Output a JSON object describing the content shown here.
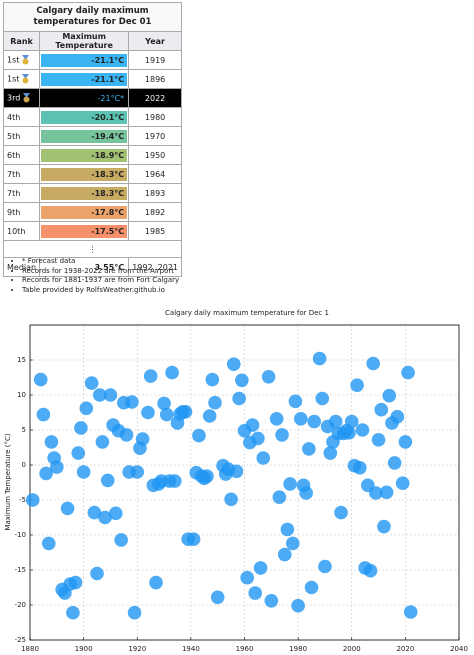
{
  "table": {
    "title": "Calgary daily maximum temperatures for Dec 01",
    "headers": [
      "Rank",
      "Maximum Temperature",
      "Year"
    ],
    "rows": [
      [
        "1st",
        "-21.1°C",
        "1919"
      ],
      [
        "1st",
        "-21.1°C",
        "1896"
      ],
      [
        "3rd",
        "-21°C*",
        "2022"
      ],
      [
        "4th",
        "-20.1°C",
        "1980"
      ],
      [
        "5th",
        "-19.4°C",
        "1970"
      ],
      [
        "6th",
        "-18.9°C",
        "1950"
      ],
      [
        "7th",
        "-18.3°C",
        "1964"
      ],
      [
        "7th",
        "-18.3°C",
        "1893"
      ],
      [
        "9th",
        "-17.8°C",
        "1892"
      ],
      [
        "10th",
        "-17.5°C",
        "1985"
      ],
      [
        "⋮"
      ],
      [
        "Median",
        "3.55°C",
        "1992..2021"
      ]
    ],
    "cell_colors": [
      "#3ab4f2",
      "#3ab4f2",
      "#000000",
      "#5cc3b2",
      "#77c39c",
      "#a2c172",
      "#c8ab62",
      "#c8ab62",
      "#eca46c",
      "#f7916b",
      null,
      null
    ]
  },
  "notes": [
    "* Forecast data",
    "Records for 1938-2022 are from the Airport",
    "Records for 1881-1937 are from Fort Calgary",
    "Table provided by RolfsWeather.github.io"
  ],
  "chart_data": {
    "type": "scatter",
    "title": "Calgary daily maximum temperature for Dec 1",
    "y_label": "Maximum Temperature (°C)",
    "color": "#2196f3",
    "grid": true,
    "xlim": [
      1880,
      2040
    ],
    "xticks": [
      1880,
      1900,
      1920,
      1940,
      1960,
      1980,
      2000,
      2020,
      2040
    ],
    "ylim": [
      -25,
      20
    ],
    "yticks": [
      -25,
      -20,
      -15,
      -10,
      -5,
      0,
      5,
      10,
      15
    ],
    "x": [
      1881,
      1884,
      1885,
      1886,
      1887,
      1888,
      1889,
      1890,
      1892,
      1893,
      1894,
      1895,
      1896,
      1897,
      1898,
      1899,
      1900,
      1901,
      1903,
      1904,
      1905,
      1906,
      1907,
      1908,
      1909,
      1910,
      1911,
      1912,
      1913,
      1914,
      1915,
      1916,
      1917,
      1918,
      1919,
      1920,
      1921,
      1922,
      1924,
      1925,
      1926,
      1927,
      1928,
      1929,
      1930,
      1931,
      1932,
      1933,
      1934,
      1935,
      1936,
      1937,
      1938,
      1939,
      1941,
      1942,
      1943,
      1944,
      1945,
      1946,
      1947,
      1948,
      1949,
      1950,
      1952,
      1953,
      1954,
      1955,
      1956,
      1957,
      1958,
      1959,
      1960,
      1961,
      1962,
      1963,
      1964,
      1965,
      1966,
      1967,
      1969,
      1970,
      1972,
      1973,
      1974,
      1975,
      1976,
      1977,
      1978,
      1979,
      1980,
      1981,
      1982,
      1983,
      1984,
      1985,
      1986,
      1988,
      1989,
      1990,
      1991,
      1992,
      1993,
      1994,
      1995,
      1996,
      1997,
      1998,
      1999,
      2000,
      2001,
      2002,
      2003,
      2004,
      2005,
      2006,
      2007,
      2008,
      2009,
      2010,
      2011,
      2012,
      2013,
      2014,
      2015,
      2016,
      2017,
      2019,
      2020,
      2021,
      2022
    ],
    "values": [
      -5,
      12.2,
      7.2,
      -1.2,
      -11.2,
      3.3,
      1,
      -0.3,
      -17.8,
      -18.3,
      -6.2,
      -17,
      -21.1,
      -16.8,
      1.7,
      5.3,
      -1,
      8.1,
      11.7,
      -6.8,
      -15.5,
      10,
      3.3,
      -7.5,
      -2.2,
      10,
      5.7,
      -6.9,
      4.9,
      -10.7,
      8.9,
      4.3,
      -1,
      9,
      -21.1,
      -1,
      2.4,
      3.7,
      7.5,
      12.7,
      -2.9,
      -16.8,
      -2.7,
      -2.3,
      8.8,
      7.2,
      -2.3,
      13.2,
      -2.3,
      6,
      7.3,
      7.6,
      7.6,
      -10.6,
      -10.6,
      -1.1,
      4.2,
      -1.6,
      -1.9,
      -1.6,
      7,
      12.2,
      8.9,
      -18.9,
      -0.1,
      -1.3,
      -0.6,
      -4.9,
      14.4,
      -0.9,
      9.5,
      12.1,
      4.9,
      -16.1,
      3.2,
      5.7,
      -18.3,
      3.8,
      -14.7,
      1,
      12.6,
      -19.4,
      6.6,
      -4.6,
      4.3,
      -12.8,
      -9.2,
      -2.7,
      -11.2,
      9.1,
      -20.1,
      6.6,
      -2.9,
      -4,
      2.3,
      -17.5,
      6.2,
      15.2,
      9.5,
      -14.5,
      5.5,
      1.7,
      3.3,
      6.2,
      4.5,
      -6.8,
      4.5,
      4.9,
      4.6,
      6.2,
      -0.1,
      11.4,
      -0.4,
      5,
      -14.7,
      -2.9,
      -15.1,
      14.5,
      -4,
      3.6,
      7.9,
      -8.8,
      -3.9,
      9.9,
      6,
      0.3,
      6.9,
      -2.6,
      3.3,
      13.2,
      -21
    ]
  }
}
